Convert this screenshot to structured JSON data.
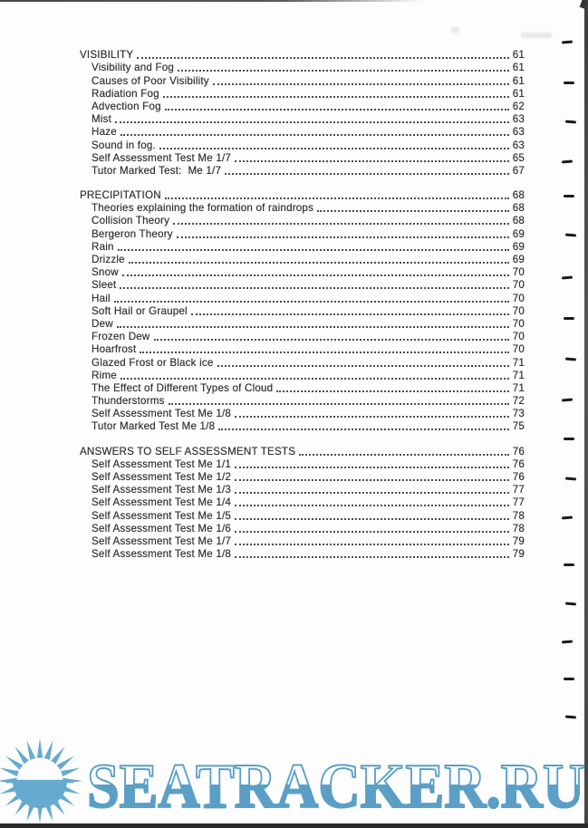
{
  "page": {
    "background": "#fdfdfd",
    "text_color": "#333333",
    "edge_color": "#474747"
  },
  "toc": {
    "sections": [
      {
        "title": "VISIBILITY",
        "page": "61",
        "items": [
          {
            "label": "Visibility and Fog",
            "page": "61"
          },
          {
            "label": "Causes of Poor Visibility",
            "page": "61"
          },
          {
            "label": "Radiation Fog",
            "page": "61"
          },
          {
            "label": "Advection Fog",
            "page": "62"
          },
          {
            "label": "Mist",
            "page": "63"
          },
          {
            "label": "Haze",
            "page": "63"
          },
          {
            "label": "Sound in fog.",
            "page": "63"
          },
          {
            "label": "Self Assessment Test Me 1/7",
            "page": "65"
          },
          {
            "label": "Tutor Marked Test:  Me 1/7",
            "page": "67"
          }
        ]
      },
      {
        "title": "PRECIPITATION",
        "page": "68",
        "items": [
          {
            "label": "Theories explaining the formation of raindrops",
            "page": "68"
          },
          {
            "label": "Collision Theory",
            "page": "68"
          },
          {
            "label": "Bergeron Theory",
            "page": "69"
          },
          {
            "label": "Rain",
            "page": "69"
          },
          {
            "label": "Drizzle",
            "page": "69"
          },
          {
            "label": "Snow",
            "page": "70"
          },
          {
            "label": "Sleet",
            "page": "70"
          },
          {
            "label": "Hail",
            "page": "70"
          },
          {
            "label": "Soft Hail or Graupel",
            "page": "70"
          },
          {
            "label": "Dew",
            "page": "70"
          },
          {
            "label": "Frozen Dew",
            "page": "70"
          },
          {
            "label": "Hoarfrost",
            "page": "70"
          },
          {
            "label": "Glazed Frost or Black ice",
            "page": "71"
          },
          {
            "label": "Rime",
            "page": "71"
          },
          {
            "label": "The Effect of Different Types of Cloud",
            "page": "71"
          },
          {
            "label": "Thunderstorms",
            "page": "72"
          },
          {
            "label": "Self Assessment Test Me 1/8",
            "page": "73"
          },
          {
            "label": "Tutor Marked Test Me 1/8",
            "page": "75"
          }
        ]
      },
      {
        "title": "ANSWERS TO SELF ASSESSMENT TESTS",
        "page": "76",
        "items": [
          {
            "label": "Self Assessment Test Me 1/1",
            "page": "76"
          },
          {
            "label": "Self Assessment Test Me 1/2",
            "page": "76"
          },
          {
            "label": "Self Assessment Test Me 1/3",
            "page": "77"
          },
          {
            "label": "Self Assessment Test Me 1/4",
            "page": "77"
          },
          {
            "label": "Self Assessment Test Me 1/5",
            "page": "78"
          },
          {
            "label": "Self Assessment Test Me 1/6",
            "page": "78"
          },
          {
            "label": "Self Assessment Test Me 1/7",
            "page": "79"
          },
          {
            "label": "Self Assessment Test Me 1/8",
            "page": "79"
          }
        ]
      }
    ]
  },
  "watermark": {
    "text": "SEATRACKER.RU",
    "logo": "sun-over-sea-icon",
    "text_color": "#5b9fc7",
    "logo_color": "#66aacf"
  }
}
